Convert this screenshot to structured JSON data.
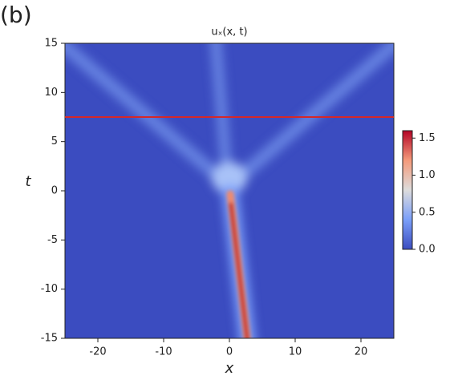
{
  "panel_label": "(b)",
  "chart_data": {
    "type": "heatmap",
    "title": "uₓ(x, t)",
    "xlabel": "x",
    "ylabel": "t",
    "xlim": [
      -25,
      25
    ],
    "xticks": [
      -20,
      -10,
      0,
      10,
      20
    ],
    "ylim": [
      -15,
      15
    ],
    "yticks": [
      -15,
      -10,
      -5,
      0,
      5,
      10,
      15
    ],
    "colormap": "coolwarm",
    "clim": [
      0,
      1.6
    ],
    "cticks": [
      {
        "value": 0,
        "label": "0.0"
      },
      0.5,
      {
        "value": 1,
        "label": "1.0"
      },
      1.5
    ],
    "hline": 7.5,
    "hline_color": "#d62728"
  }
}
